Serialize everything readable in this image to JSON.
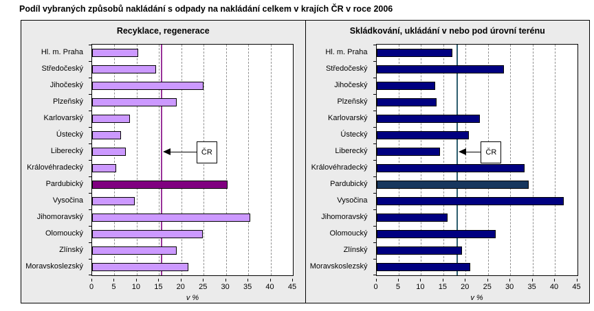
{
  "page_title": "Podíl vybraných způsobů nakládání s odpady na nakládání celkem v krajích ČR v roce 2006",
  "cr_annotation_label": "ČR",
  "colors": {
    "panel_background": "#EBEBEB",
    "plot_background": "#FFFFFF",
    "gridline": "#909090",
    "recycling_bar": "#CC99FF",
    "recycling_highlight": "#800080",
    "recycling_cr_line": "#993399",
    "landfill_bar": "#000080",
    "landfill_highlight": "#17375E",
    "landfill_cr_line": "#2D5E6E"
  },
  "chart_data": [
    {
      "type": "bar",
      "orientation": "horizontal",
      "title": "Recyklace, regenerace",
      "xlabel": "v %",
      "xlim": [
        0,
        45
      ],
      "xticks": [
        0,
        5,
        10,
        15,
        20,
        25,
        30,
        35,
        40,
        45
      ],
      "grid": "vertical-dashed",
      "categories": [
        "Hl. m. Praha",
        "Středočeský",
        "Jihočeský",
        "Plzeňský",
        "Karlovarský",
        "Ústecký",
        "Liberecký",
        "Královéhradecký",
        "Pardubický",
        "Vysočina",
        "Jihomoravský",
        "Olomoucký",
        "Zlínský",
        "Moravskoslezský"
      ],
      "values": [
        10.4,
        14.3,
        25.0,
        19.0,
        8.4,
        6.5,
        7.5,
        5.4,
        30.4,
        9.6,
        35.5,
        24.8,
        18.9,
        21.5
      ],
      "highlight_index": 8,
      "bar_color": "#CC99FF",
      "highlight_color": "#800080",
      "cr_line_value": 15.5,
      "cr_line_color": "#993399",
      "cr_label": "ČR",
      "callout_row_index": 6,
      "callout_box_left_pct": 52
    },
    {
      "type": "bar",
      "orientation": "horizontal",
      "title": "Skládkování, ukládání v nebo pod úrovní terénu",
      "xlabel": "v %",
      "xlim": [
        0,
        45
      ],
      "xticks": [
        0,
        5,
        10,
        15,
        20,
        25,
        30,
        35,
        40,
        45
      ],
      "grid": "vertical-dashed",
      "categories": [
        "Hl. m. Praha",
        "Středočeský",
        "Jihočeský",
        "Plzeňský",
        "Karlovarský",
        "Ústecký",
        "Liberecký",
        "Královéhradecký",
        "Pardubický",
        "Vysočina",
        "Jihomoravský",
        "Olomoucký",
        "Zlínský",
        "Moravskoslezský"
      ],
      "values": [
        17.1,
        28.6,
        13.2,
        13.5,
        23.2,
        20.7,
        14.2,
        33.2,
        34.2,
        42.0,
        16.0,
        26.8,
        19.2,
        21.1
      ],
      "highlight_index": 8,
      "bar_color": "#000080",
      "highlight_color": "#17375E",
      "cr_line_value": 18.1,
      "cr_line_color": "#2D5E6E",
      "cr_label": "ČR",
      "callout_row_index": 6,
      "callout_box_left_pct": 52
    }
  ]
}
